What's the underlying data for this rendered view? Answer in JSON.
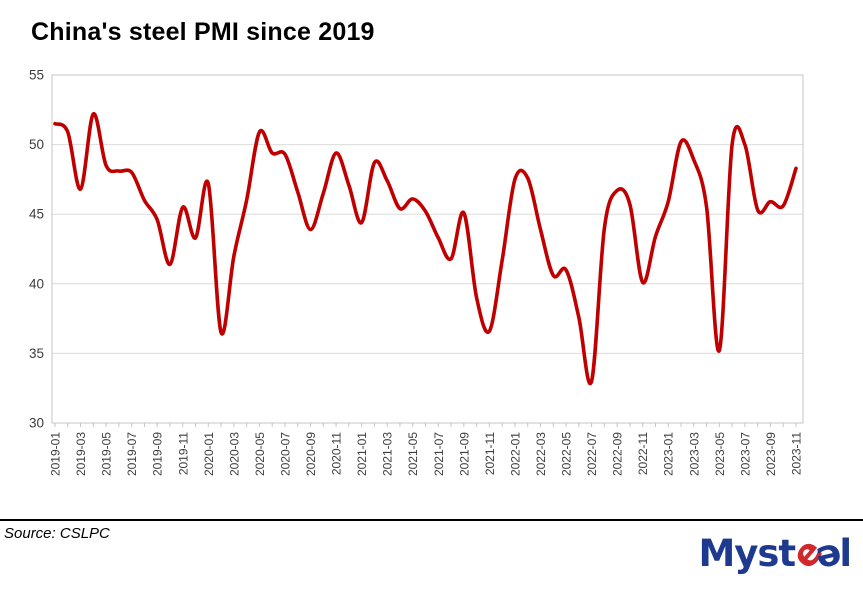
{
  "title": "China's steel PMI since 2019",
  "source": {
    "text": "Source: CSLPC"
  },
  "logo": {
    "part1": "Myst",
    "e_red": "e",
    "e_blue": "ə",
    "part2": "l",
    "navy": "#1E3A8F",
    "red": "#D2272B"
  },
  "chart_data": {
    "type": "line",
    "title": "China's steel PMI since 2019",
    "series_name": "Steel PMI",
    "x": [
      "2019-01",
      "2019-02",
      "2019-03",
      "2019-04",
      "2019-05",
      "2019-06",
      "2019-07",
      "2019-08",
      "2019-09",
      "2019-10",
      "2019-11",
      "2019-12",
      "2020-01",
      "2020-02",
      "2020-03",
      "2020-04",
      "2020-05",
      "2020-06",
      "2020-07",
      "2020-08",
      "2020-09",
      "2020-10",
      "2020-11",
      "2020-12",
      "2021-01",
      "2021-02",
      "2021-03",
      "2021-04",
      "2021-05",
      "2021-06",
      "2021-07",
      "2021-08",
      "2021-09",
      "2021-10",
      "2021-11",
      "2021-12",
      "2022-01",
      "2022-02",
      "2022-03",
      "2022-04",
      "2022-05",
      "2022-06",
      "2022-07",
      "2022-08",
      "2022-09",
      "2022-10",
      "2022-11",
      "2022-12",
      "2023-01",
      "2023-02",
      "2023-03",
      "2023-04",
      "2023-05",
      "2023-06",
      "2023-07",
      "2023-08",
      "2023-09",
      "2023-10",
      "2023-11"
    ],
    "values": [
      51.5,
      50.9,
      46.8,
      52.2,
      48.5,
      48.1,
      48.0,
      46.0,
      44.6,
      41.4,
      45.5,
      43.3,
      47.2,
      36.5,
      42.0,
      46.0,
      50.9,
      49.4,
      49.3,
      46.6,
      43.9,
      46.5,
      49.4,
      47.1,
      44.4,
      48.7,
      47.4,
      45.4,
      46.1,
      45.2,
      43.3,
      41.8,
      45.1,
      39.0,
      36.6,
      41.7,
      47.5,
      47.6,
      43.9,
      40.6,
      41.0,
      37.6,
      33.0,
      44.0,
      46.7,
      45.7,
      40.1,
      43.4,
      45.9,
      50.2,
      48.9,
      45.5,
      35.2,
      50.0,
      50.0,
      45.3,
      45.9,
      45.6,
      48.3
    ],
    "xlabel": "",
    "ylabel": "",
    "ylim": [
      30,
      55
    ],
    "yticks": [
      30,
      35,
      40,
      45,
      50,
      55
    ],
    "x_tick_step": 2,
    "grid": true,
    "legend": "none",
    "smoothed": true,
    "line_color": "#C00000",
    "grid_color": "#DCDCDC",
    "axis_color": "#C6C6C6",
    "tick_label_color": "#3D3D3D"
  }
}
